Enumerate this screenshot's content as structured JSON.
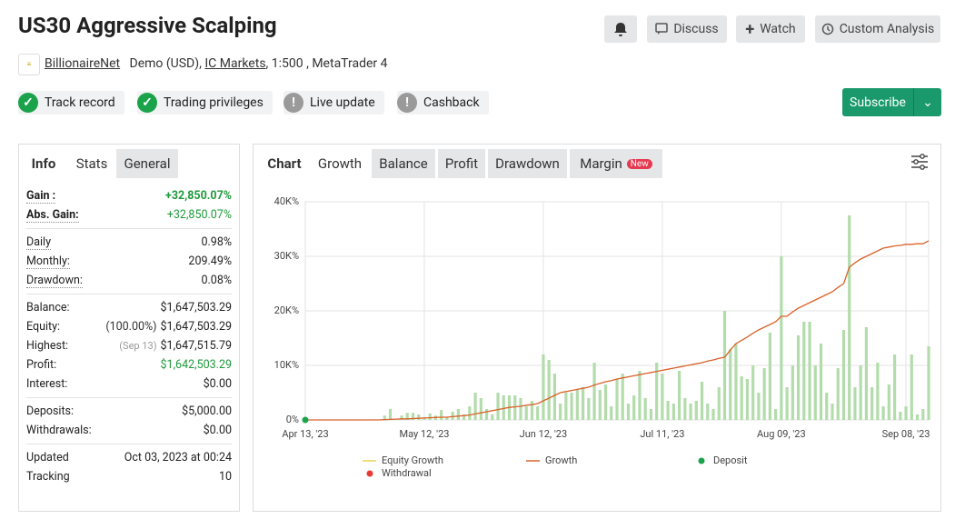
{
  "header": {
    "title": "US30 Aggressive Scalping",
    "buttons": [
      "Discuss",
      "Watch",
      "Custom Analysis"
    ]
  },
  "account": {
    "owner": "BillionaireNet",
    "type": "Demo (USD),",
    "broker": "IC Markets",
    "details": ", 1:500 , MetaTrader 4"
  },
  "badges": [
    "Track record",
    "Trading privileges",
    "Live update",
    "Cashback"
  ],
  "subscribe": "Subscribe",
  "stats": {
    "tabs": [
      "Info",
      "Stats",
      "General"
    ],
    "groups": [
      [
        {
          "label": "Gain :",
          "value": "+32,850.07%"
        },
        {
          "label": "Abs. Gain:",
          "value": "+32,850.07%"
        }
      ],
      [
        {
          "label": "Daily",
          "value": "0.98%"
        },
        {
          "label": "Monthly:",
          "value": "209.49%"
        },
        {
          "label": "Drawdown:",
          "value": "0.08%"
        }
      ],
      [
        {
          "label": "Balance:",
          "value": "$1,647,503.29"
        },
        {
          "label": "Equity:",
          "note": "(100.00%)",
          "value": "$1,647,503.29"
        },
        {
          "label": "Highest:",
          "note": "(Sep 13)",
          "value": "$1,647,515.79"
        },
        {
          "label": "Profit:",
          "value": "$1,642,503.29"
        },
        {
          "label": "Interest:",
          "value": "$0.00"
        }
      ],
      [
        {
          "label": "Deposits:",
          "value": "$5,000.00"
        },
        {
          "label": "Withdrawals:",
          "value": "$0.00"
        }
      ],
      [
        {
          "label": "Updated",
          "value": "Oct 03, 2023 at 00:24"
        },
        {
          "label": "Tracking",
          "value": "10"
        }
      ]
    ]
  },
  "chart_tabs": {
    "title": "Chart",
    "tabs": [
      "Growth",
      "Balance",
      "Profit",
      "Drawdown",
      "Margin"
    ],
    "badge": "New"
  },
  "chart_data": {
    "type": "bar-line",
    "categories": [
      "Apr 13, '23",
      null,
      null,
      null,
      null,
      null,
      null,
      null,
      null,
      null,
      null,
      null,
      null,
      null,
      null,
      null,
      null,
      null,
      null,
      null,
      null,
      "May 12, '23",
      null,
      null,
      null,
      null,
      null,
      null,
      null,
      null,
      null,
      null,
      null,
      null,
      null,
      null,
      null,
      null,
      null,
      null,
      null,
      null,
      "Jun 12, '23",
      null,
      null,
      null,
      null,
      null,
      null,
      null,
      null,
      null,
      null,
      null,
      null,
      null,
      null,
      null,
      null,
      null,
      null,
      null,
      null,
      "Jul 11, '23",
      null,
      null,
      null,
      null,
      null,
      null,
      null,
      null,
      null,
      null,
      null,
      null,
      null,
      null,
      null,
      null,
      null,
      null,
      null,
      null,
      "Aug 09, '23",
      null,
      null,
      null,
      null,
      null,
      null,
      null,
      null,
      null,
      null,
      null,
      null,
      null,
      null,
      null,
      null,
      null,
      null,
      null,
      null,
      null,
      "Sep 08, '23",
      null,
      null,
      null,
      null
    ],
    "series": [
      {
        "type": "bar",
        "color": "#b3dcab",
        "values": [
          0,
          0,
          0,
          0,
          0,
          0,
          0,
          0,
          0,
          0,
          0,
          0,
          0,
          0,
          800,
          2000,
          0,
          800,
          1300,
          1300,
          1000,
          500,
          1200,
          800,
          1800,
          500,
          1500,
          2000,
          1000,
          2500,
          5000,
          4000,
          2000,
          1000,
          5000,
          4500,
          4500,
          4500,
          4000,
          2500,
          3500,
          2500,
          12000,
          11000,
          8500,
          3000,
          5000,
          5000,
          5500,
          6000,
          4000,
          10500,
          5500,
          6500,
          2500,
          7500,
          8500,
          3000,
          4500,
          9000,
          4000,
          2000,
          10500,
          8500,
          3500,
          3000,
          9000,
          4000,
          3000,
          3500,
          7000,
          3000,
          2000,
          6000,
          20000,
          13000,
          14000,
          8000,
          7500,
          10000,
          5000,
          9500,
          16000,
          2000,
          30000,
          6000,
          10000,
          15500,
          18000,
          18000,
          10000,
          14000,
          5000,
          3000,
          9500,
          16500,
          37500,
          6000,
          10000,
          17000,
          6000,
          10500,
          2500,
          6500,
          12000,
          1500,
          2500,
          12000,
          1000,
          2000,
          13500
        ]
      },
      {
        "type": "line",
        "name": "Growth",
        "color": "#d9622b",
        "values": [
          0,
          0,
          0,
          0,
          0,
          0,
          0,
          0,
          0,
          0,
          0,
          0,
          0,
          0,
          50,
          100,
          150,
          200,
          200,
          250,
          300,
          350,
          400,
          450,
          500,
          500,
          600,
          700,
          800,
          900,
          1100,
          1300,
          1500,
          1700,
          1900,
          2100,
          2300,
          2400,
          2500,
          2700,
          2800,
          3000,
          3500,
          4000,
          4500,
          5000,
          5200,
          5400,
          5600,
          5800,
          6000,
          6400,
          6700,
          7000,
          7200,
          7500,
          7700,
          7900,
          8100,
          8300,
          8500,
          8700,
          8900,
          9100,
          9300,
          9500,
          9700,
          9900,
          10100,
          10300,
          10500,
          10800,
          11000,
          11300,
          11500,
          12800,
          14000,
          14600,
          15200,
          15900,
          16500,
          17000,
          17500,
          18000,
          19000,
          19000,
          19800,
          20500,
          21000,
          21500,
          22000,
          22500,
          23000,
          23500,
          24300,
          25000,
          28000,
          28800,
          29500,
          30000,
          30500,
          31000,
          31500,
          31700,
          31900,
          32000,
          32200,
          32200,
          32300,
          32300,
          32850
        ]
      }
    ],
    "legend": [
      {
        "name": "Equity Growth",
        "color": "#e8d44d",
        "shape": "line"
      },
      {
        "name": "Growth",
        "color": "#d9622b",
        "shape": "line"
      },
      {
        "name": "Deposit",
        "color": "#1aa34a",
        "shape": "dot"
      },
      {
        "name": "Withdrawal",
        "color": "#e53935",
        "shape": "dot"
      }
    ],
    "ylim": [
      0,
      40000
    ],
    "yticks": [
      {
        "value": 0,
        "label": "0%"
      },
      {
        "value": 10000,
        "label": "10K%"
      },
      {
        "value": 20000,
        "label": "20K%"
      },
      {
        "value": 30000,
        "label": "30K%"
      },
      {
        "value": 40000,
        "label": "40K%"
      }
    ],
    "grid": true
  }
}
